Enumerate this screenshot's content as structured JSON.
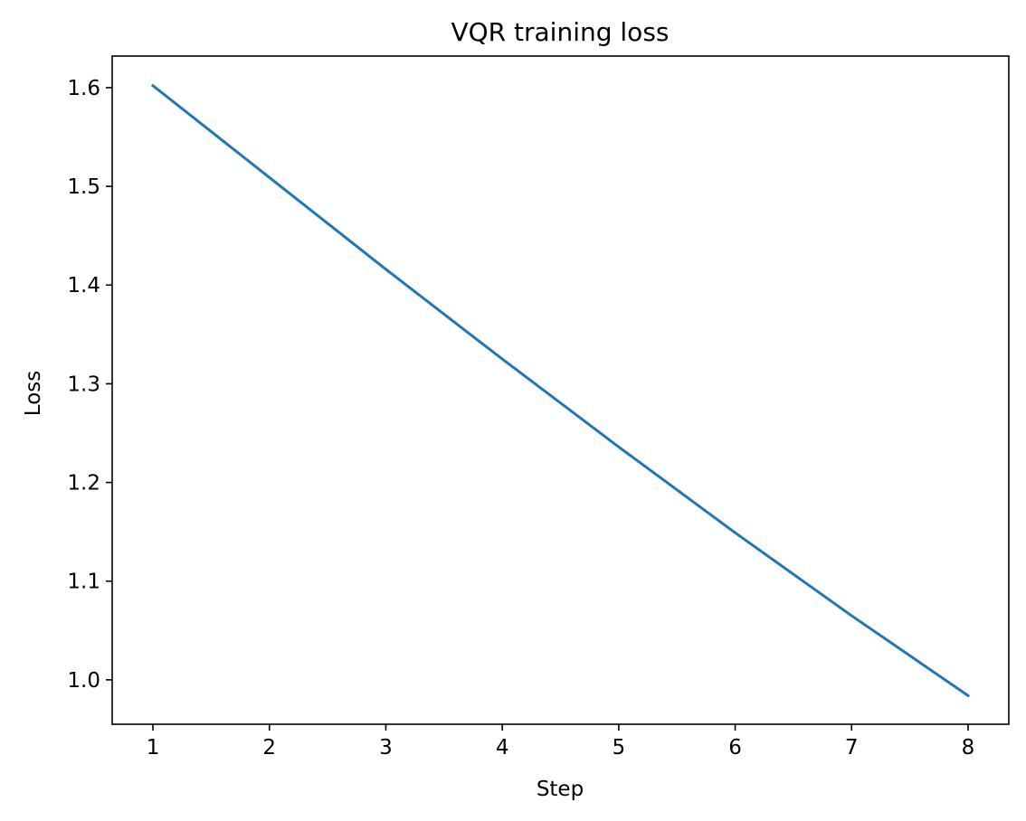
{
  "chart_data": {
    "type": "line",
    "title": "VQR training loss",
    "xlabel": "Step",
    "ylabel": "Loss",
    "xlim": [
      0.65,
      8.35
    ],
    "ylim": [
      0.955,
      1.632
    ],
    "xticks": [
      1,
      2,
      3,
      4,
      5,
      6,
      7,
      8
    ],
    "xtick_labels": [
      "1",
      "2",
      "3",
      "4",
      "5",
      "6",
      "7",
      "8"
    ],
    "yticks": [
      1.0,
      1.1,
      1.2,
      1.3,
      1.4,
      1.5,
      1.6
    ],
    "ytick_labels": [
      "1.0",
      "1.1",
      "1.2",
      "1.3",
      "1.4",
      "1.5",
      "1.6"
    ],
    "grid": false,
    "legend": false,
    "series": [
      {
        "color": "#1f77b4",
        "x": [
          1,
          2,
          3,
          4,
          5,
          6,
          7,
          8
        ],
        "y": [
          1.602,
          1.509,
          1.416,
          1.325,
          1.236,
          1.149,
          1.065,
          0.984
        ]
      }
    ]
  }
}
